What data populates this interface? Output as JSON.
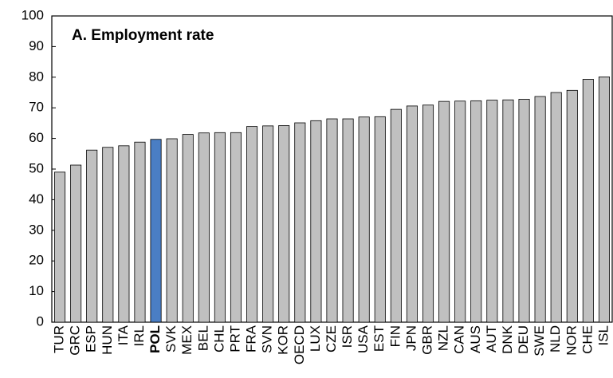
{
  "chart_data": {
    "type": "bar",
    "title": "A. Employment rate",
    "categories": [
      "TUR",
      "GRC",
      "ESP",
      "HUN",
      "ITA",
      "IRL",
      "POL",
      "SVK",
      "MEX",
      "BEL",
      "CHL",
      "PRT",
      "FRA",
      "SVN",
      "KOR",
      "OECD",
      "LUX",
      "CZE",
      "ISR",
      "USA",
      "EST",
      "FIN",
      "JPN",
      "GBR",
      "NZL",
      "CAN",
      "AUS",
      "AUT",
      "DNK",
      "DEU",
      "SWE",
      "NLD",
      "NOR",
      "CHE",
      "ISL"
    ],
    "values": [
      49.0,
      51.3,
      56.2,
      57.1,
      57.6,
      58.8,
      59.7,
      59.9,
      61.3,
      61.8,
      61.9,
      61.9,
      63.9,
      64.1,
      64.2,
      65.1,
      65.8,
      66.4,
      66.4,
      67.0,
      67.1,
      69.5,
      70.6,
      70.9,
      72.1,
      72.2,
      72.3,
      72.5,
      72.6,
      72.8,
      73.7,
      75.0,
      75.7,
      79.3,
      80.1
    ],
    "color": "#c0c0c0",
    "highlight": {
      "category": "POL",
      "color": "#4a7ec4"
    },
    "ylim": [
      0,
      100
    ],
    "yticks": [
      0,
      10,
      20,
      30,
      40,
      50,
      60,
      70,
      80,
      90,
      100
    ],
    "grid": false
  }
}
